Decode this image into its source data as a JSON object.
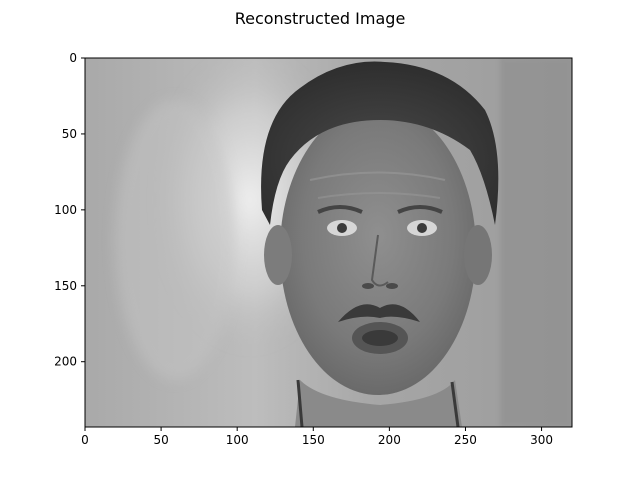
{
  "figure": {
    "title": "Reconstructed Image"
  },
  "chart_data": {
    "type": "image",
    "title": "Reconstructed Image",
    "colormap": "gray",
    "image_width": 320,
    "image_height": 243,
    "xlim": [
      0,
      320
    ],
    "ylim": [
      243,
      0
    ],
    "x_ticks": [
      0,
      50,
      100,
      150,
      200,
      250,
      300
    ],
    "y_ticks": [
      0,
      50,
      100,
      150,
      200
    ],
    "x_tick_labels": [
      "0",
      "50",
      "100",
      "150",
      "200",
      "250",
      "300"
    ],
    "y_tick_labels": [
      "0",
      "50",
      "100",
      "150",
      "200"
    ],
    "xlabel": "",
    "ylabel": "",
    "content": "grayscale reconstructed face photo"
  }
}
